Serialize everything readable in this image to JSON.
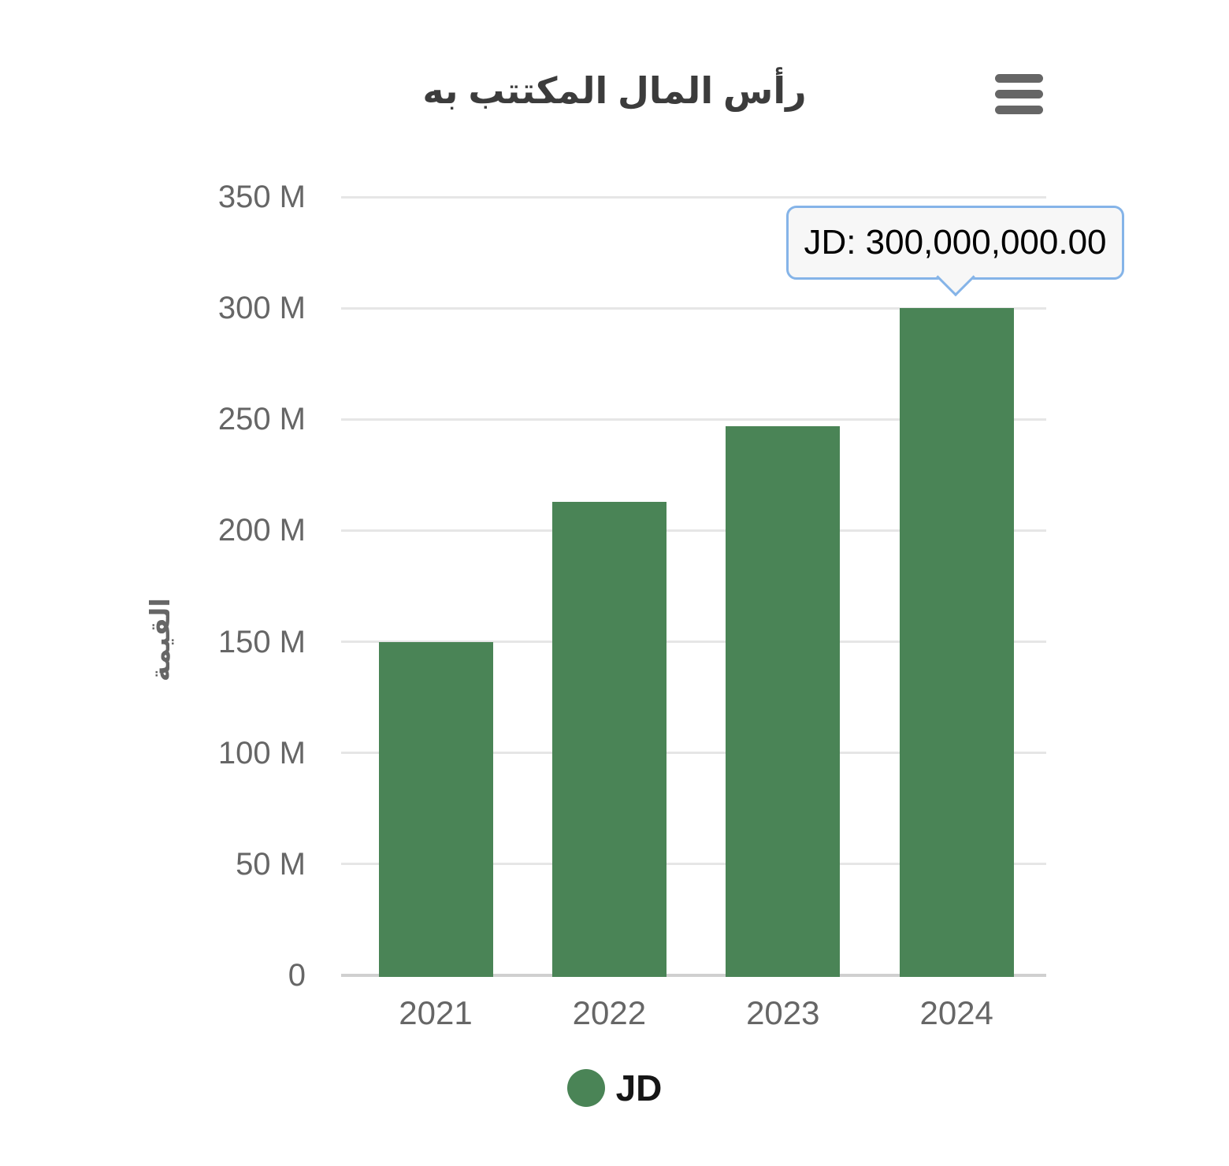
{
  "header": {
    "title": "رأس المال المكتتب به"
  },
  "y_axis": {
    "title": "القيمة"
  },
  "legend": {
    "label": "JD"
  },
  "tooltip": {
    "label": "JD: 300,000,000.00"
  },
  "colors": {
    "bar": "#4a8456",
    "tooltip_border": "#85b4e8",
    "tooltip_background": "#f7f7f7",
    "grid": "#e6e6e6",
    "axis_line": "#d0d0d0",
    "axis_text": "#666666",
    "title_text": "#3c3c3c",
    "menu_icon": "#666666"
  },
  "chart_data": {
    "type": "bar",
    "title": "رأس المال المكتتب به",
    "ylabel": "القيمة",
    "xlabel": "",
    "categories": [
      "2021",
      "2022",
      "2023",
      "2024"
    ],
    "series": [
      {
        "name": "JD",
        "color": "#4a8456",
        "values": [
          150000000,
          213000000,
          247000000,
          300000000
        ]
      }
    ],
    "ylim": [
      0,
      350000000
    ],
    "y_tick_values": [
      0,
      50000000,
      100000000,
      150000000,
      200000000,
      250000000,
      300000000,
      350000000
    ],
    "y_tick_labels": [
      "0",
      "50 M",
      "100 M",
      "150 M",
      "200 M",
      "250 M",
      "300 M",
      "350 M"
    ],
    "grid": true,
    "legend_position": "bottom",
    "tooltip": {
      "category": "2024",
      "series": "JD",
      "value": 300000000,
      "formatted": "JD: 300,000,000.00"
    }
  }
}
